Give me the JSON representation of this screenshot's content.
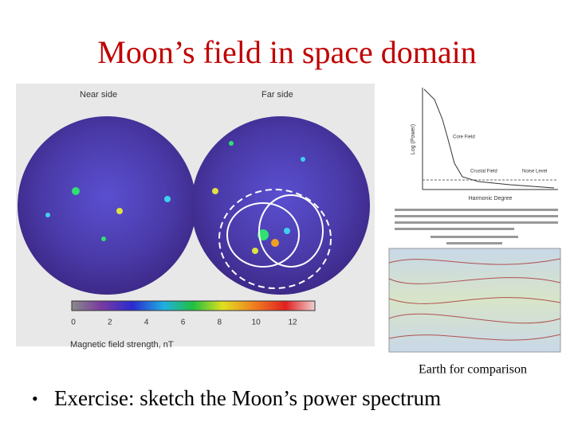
{
  "slide": {
    "title": "Moon’s field in space domain",
    "moon_map": {
      "near_label": "Near side",
      "far_label": "Far side",
      "colorbar_ticks": [
        0,
        2,
        4,
        6,
        8,
        10,
        12
      ],
      "colorbar_label": "Magnetic field strength, nT"
    },
    "spectrum_plot": {
      "y_label": "Log (Power)",
      "x_label": "Harmonic Degree",
      "core_label": "Core Field",
      "crust_label": "Crustal Field",
      "noise_label": "Noise Level"
    },
    "earth_caption": "Earth for comparison",
    "bullet": "Exercise: sketch the Moon’s power spectrum"
  }
}
